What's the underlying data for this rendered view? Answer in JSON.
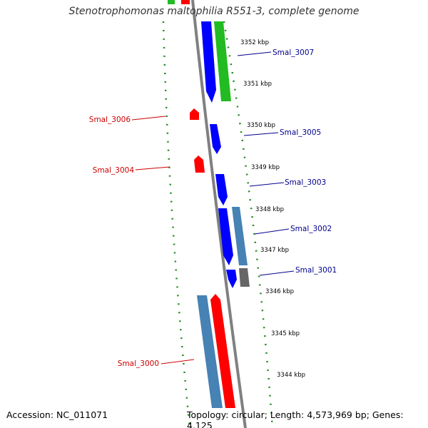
{
  "title": "Stenotrophomonas maltophilia R551-3, complete genome",
  "footer": {
    "accession": "Accession: NC_011071",
    "summary": "Topology: circular; Length: 4,573,969 bp; Genes: 4,125"
  },
  "colors": {
    "background": "#ffffff",
    "backbone": "#808080",
    "forward_strand_gene": "#0000ff",
    "reverse_strand_gene": "#ff0000",
    "other_feature_blue": "#4682b4",
    "other_feature_green": "#22bb22",
    "other_feature_gray": "#666666",
    "forward_label": "#00008b",
    "reverse_label": "#cc0000",
    "dotted_ring": "#228b22"
  },
  "scale_ticks": [
    "3352 kbp",
    "3351 kbp",
    "3350 kbp",
    "3349 kbp",
    "3348 kbp",
    "3347 kbp",
    "3346 kbp",
    "3345 kbp",
    "3344 kbp"
  ],
  "genes": [
    {
      "name": "Smal_3007",
      "strand": "+"
    },
    {
      "name": "Smal_3006",
      "strand": "-"
    },
    {
      "name": "Smal_3005",
      "strand": "+"
    },
    {
      "name": "Smal_3004",
      "strand": "-"
    },
    {
      "name": "Smal_3003",
      "strand": "+"
    },
    {
      "name": "Smal_3002",
      "strand": "+"
    },
    {
      "name": "Smal_3001",
      "strand": "+"
    },
    {
      "name": "Smal_3000",
      "strand": "-"
    }
  ]
}
